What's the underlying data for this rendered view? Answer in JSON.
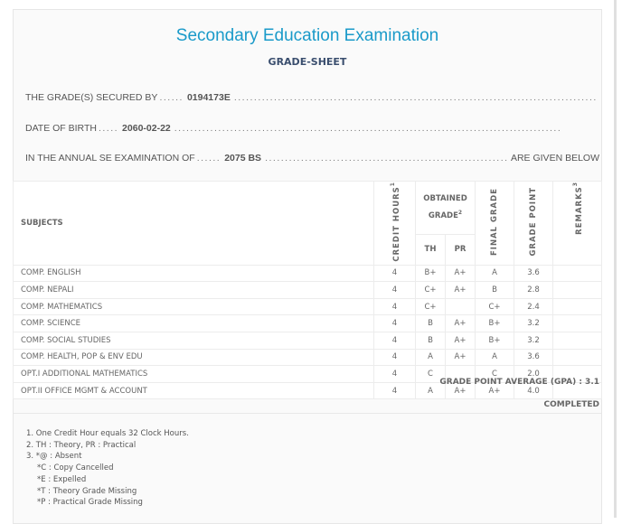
{
  "header": {
    "title": "Secondary Education Examination",
    "subtitle": "GRADE-SHEET"
  },
  "info": {
    "secured_by_label": "THE GRADE(S) SECURED BY",
    "symbol_no": "0194173E",
    "dob_label": "DATE OF BIRTH",
    "dob": "2060-02-22",
    "exam_label": "IN THE ANNUAL SE EXAMINATION OF",
    "exam_year": "2075 BS",
    "given_below": "ARE GIVEN BELOW"
  },
  "table": {
    "headers": {
      "subjects": "SUBJECTS",
      "credit_hours": "CREDIT HOURS",
      "credit_sup": "1",
      "obtained_grade": "OBTAINED GRADE",
      "obtained_sup": "2",
      "th": "TH",
      "pr": "PR",
      "final_grade": "FINAL GRADE",
      "grade_point": "GRADE POINT",
      "remarks": "REMARKS",
      "remarks_sup": "3"
    },
    "rows": [
      {
        "subject": "COMP. ENGLISH",
        "ch": "4",
        "th": "B+",
        "pr": "A+",
        "final": "A",
        "gp": "3.6",
        "remarks": ""
      },
      {
        "subject": "COMP. NEPALI",
        "ch": "4",
        "th": "C+",
        "pr": "A+",
        "final": "B",
        "gp": "2.8",
        "remarks": ""
      },
      {
        "subject": "COMP. MATHEMATICS",
        "ch": "4",
        "th": "C+",
        "pr": "",
        "final": "C+",
        "gp": "2.4",
        "remarks": ""
      },
      {
        "subject": "COMP. SCIENCE",
        "ch": "4",
        "th": "B",
        "pr": "A+",
        "final": "B+",
        "gp": "3.2",
        "remarks": ""
      },
      {
        "subject": "COMP. SOCIAL STUDIES",
        "ch": "4",
        "th": "B",
        "pr": "A+",
        "final": "B+",
        "gp": "3.2",
        "remarks": ""
      },
      {
        "subject": "COMP. HEALTH, POP & ENV EDU",
        "ch": "4",
        "th": "A",
        "pr": "A+",
        "final": "A",
        "gp": "3.6",
        "remarks": ""
      },
      {
        "subject": "OPT.I ADDITIONAL MATHEMATICS",
        "ch": "4",
        "th": "C",
        "pr": "",
        "final": "C",
        "gp": "2.0",
        "remarks": ""
      },
      {
        "subject": "OPT.II OFFICE MGMT & ACCOUNT",
        "ch": "4",
        "th": "A",
        "pr": "A+",
        "final": "A+",
        "gp": "4.0",
        "remarks": ""
      }
    ]
  },
  "summary": {
    "gpa": "GRADE POINT AVERAGE (GPA) : 3.1",
    "status": "COMPLETED"
  },
  "notes": [
    "1. One Credit Hour equals 32 Clock Hours.",
    "2. TH : Theory, PR : Practical",
    "3. *@ : Absent",
    "*C : Copy Cancelled",
    "*E : Expelled",
    "*T : Theory Grade Missing",
    "*P : Practical Grade Missing"
  ]
}
